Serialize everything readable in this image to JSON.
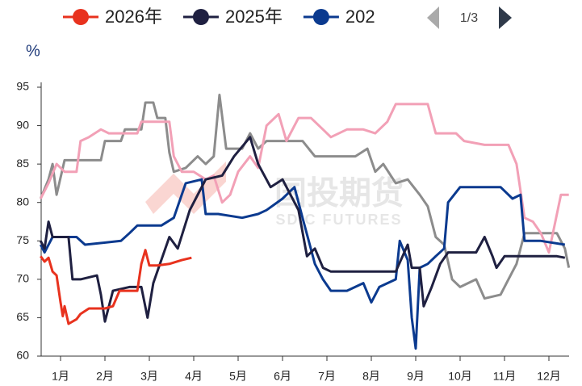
{
  "chart_data": {
    "type": "line",
    "y_label": "%",
    "legend_page": "1/3",
    "watermark": {
      "cn": "国投期货",
      "en": "SDIC FUTURES"
    },
    "xlim": [
      0.5,
      12.5
    ],
    "xticks": [
      {
        "value": 1,
        "label": "1月"
      },
      {
        "value": 2,
        "label": "2月"
      },
      {
        "value": 3,
        "label": "3月"
      },
      {
        "value": 4,
        "label": "4月"
      },
      {
        "value": 5,
        "label": "5月"
      },
      {
        "value": 6,
        "label": "6月"
      },
      {
        "value": 7,
        "label": "7月"
      },
      {
        "value": 8,
        "label": "8月"
      },
      {
        "value": 9,
        "label": "9月"
      },
      {
        "value": 10,
        "label": "10月"
      },
      {
        "value": 11,
        "label": "11月"
      },
      {
        "value": 12,
        "label": "12月"
      }
    ],
    "ylim": [
      60,
      95
    ],
    "yticks": [
      60,
      65,
      70,
      75,
      80,
      85,
      90,
      95
    ],
    "series": [
      {
        "name": "2026年",
        "color": "#e8321e",
        "x": [
          0.55,
          0.64,
          0.73,
          0.82,
          0.91,
          1.0,
          1.05,
          1.09,
          1.18,
          1.36,
          1.45,
          1.64,
          1.82,
          2.0,
          2.18,
          2.33,
          2.55,
          2.73,
          2.82,
          2.91,
          3.0,
          3.18,
          3.45,
          3.73,
          3.95
        ],
        "values": [
          73,
          72.3,
          72.8,
          71,
          70.5,
          67,
          65.2,
          66.5,
          64.2,
          64.8,
          65.5,
          66.2,
          66.2,
          66.2,
          66.5,
          68.5,
          68.5,
          68.5,
          72,
          73.8,
          71.8,
          71.8,
          72,
          72.5,
          72.8
        ]
      },
      {
        "name": "2025年",
        "color": "#1f2041",
        "x": [
          0.55,
          0.64,
          0.73,
          0.82,
          1.0,
          1.18,
          1.27,
          1.45,
          1.82,
          1.91,
          2.0,
          2.18,
          2.55,
          2.82,
          2.96,
          3.09,
          3.27,
          3.45,
          3.64,
          3.91,
          4.27,
          4.64,
          4.91,
          5.27,
          5.45,
          5.73,
          6.0,
          6.18,
          6.36,
          6.55,
          6.73,
          6.91,
          7.09,
          7.45,
          8.0,
          8.55,
          8.82,
          8.91,
          9.09,
          9.18,
          9.36,
          9.55,
          9.73,
          10.36,
          10.55,
          10.73,
          10.82,
          11.0,
          11.64,
          12.18,
          12.36
        ],
        "values": [
          75,
          74,
          77.5,
          75.5,
          75.5,
          75.5,
          70,
          70,
          70.5,
          68,
          64.5,
          68.5,
          69,
          69,
          65,
          69.5,
          72.5,
          75.5,
          74,
          79,
          83,
          83.5,
          86,
          88.5,
          85,
          82,
          83,
          81,
          79,
          73,
          74,
          71.5,
          71,
          71,
          71,
          71,
          74.5,
          71.5,
          71.5,
          66.5,
          69,
          72,
          73.5,
          73.5,
          75.5,
          73,
          71.5,
          73,
          73,
          73,
          72.8
        ]
      },
      {
        "name": "202",
        "color": "#0b3a8f",
        "x": [
          0.55,
          0.64,
          0.82,
          1.36,
          1.55,
          2.36,
          2.55,
          2.73,
          3.27,
          3.55,
          3.82,
          4.18,
          4.27,
          4.55,
          5.09,
          5.45,
          5.64,
          6.0,
          6.27,
          6.45,
          6.73,
          6.91,
          7.09,
          7.45,
          7.82,
          8.0,
          8.18,
          8.55,
          8.64,
          8.82,
          8.91,
          9.0,
          9.09,
          9.27,
          9.45,
          9.64,
          9.73,
          10.0,
          10.55,
          10.91,
          11.18,
          11.36,
          11.45,
          11.82,
          12.36
        ],
        "values": [
          74.5,
          73.5,
          75.5,
          75.5,
          74.5,
          75,
          76,
          77,
          77,
          78,
          82.5,
          83,
          78.5,
          78.5,
          78,
          78.5,
          79,
          80.5,
          82,
          78,
          72,
          70,
          68.5,
          68.5,
          69.5,
          67,
          69,
          70,
          75,
          72.5,
          65,
          61,
          71.5,
          72,
          73,
          74,
          80,
          82,
          82,
          82,
          80.5,
          81,
          75,
          75,
          74.5
        ]
      },
      {
        "color": "#f2a0b6",
        "x": [
          0.55,
          0.73,
          0.91,
          1.09,
          1.36,
          1.45,
          1.64,
          1.91,
          2.09,
          2.73,
          2.82,
          3.45,
          3.55,
          3.73,
          4.0,
          4.27,
          4.45,
          4.64,
          4.82,
          5.0,
          5.27,
          5.45,
          5.64,
          5.91,
          6.09,
          6.36,
          6.64,
          6.91,
          7.09,
          7.45,
          7.82,
          8.09,
          8.36,
          8.55,
          9.27,
          9.45,
          9.91,
          10.09,
          10.55,
          11.09,
          11.27,
          11.45,
          11.64,
          11.82,
          12.0,
          12.27,
          12.45
        ],
        "values": [
          80.5,
          82.5,
          85,
          84,
          84,
          88,
          88.5,
          89.5,
          89,
          89,
          90.5,
          90.5,
          86,
          84,
          84,
          83,
          83.5,
          80,
          81,
          84,
          86,
          84.5,
          90,
          91.5,
          88,
          91,
          91,
          89.5,
          88.5,
          89.5,
          89.5,
          89,
          90.5,
          92.8,
          92.8,
          89,
          89,
          88,
          87.5,
          87.5,
          85,
          78,
          77.5,
          76,
          73.5,
          81,
          81
        ]
      },
      {
        "color": "#8c8c8c",
        "x": [
          0.55,
          0.73,
          0.82,
          0.91,
          1.09,
          1.91,
          2.0,
          2.36,
          2.45,
          2.82,
          2.91,
          3.09,
          3.18,
          3.36,
          3.45,
          3.55,
          3.82,
          4.09,
          4.27,
          4.45,
          4.58,
          4.73,
          5.09,
          5.27,
          5.45,
          5.64,
          5.91,
          6.45,
          6.73,
          7.09,
          7.64,
          7.91,
          8.09,
          8.27,
          8.55,
          8.82,
          9.09,
          9.27,
          9.45,
          9.64,
          9.82,
          10.0,
          10.18,
          10.36,
          10.55,
          10.91,
          11.09,
          11.27,
          11.45,
          12.18,
          12.36,
          12.45
        ],
        "values": [
          80.5,
          83,
          85,
          81,
          85.5,
          85.5,
          88,
          88,
          89.5,
          89.5,
          93,
          93,
          91,
          91,
          86.5,
          84,
          84.5,
          86,
          85,
          86,
          94,
          87,
          87,
          89,
          87,
          88,
          88,
          88,
          86,
          86,
          86,
          87,
          84,
          85,
          82.5,
          83,
          81,
          79.5,
          75.5,
          74.5,
          70,
          69,
          69.5,
          70,
          67.5,
          68,
          70,
          72,
          76,
          76,
          74,
          71.5
        ]
      }
    ]
  }
}
